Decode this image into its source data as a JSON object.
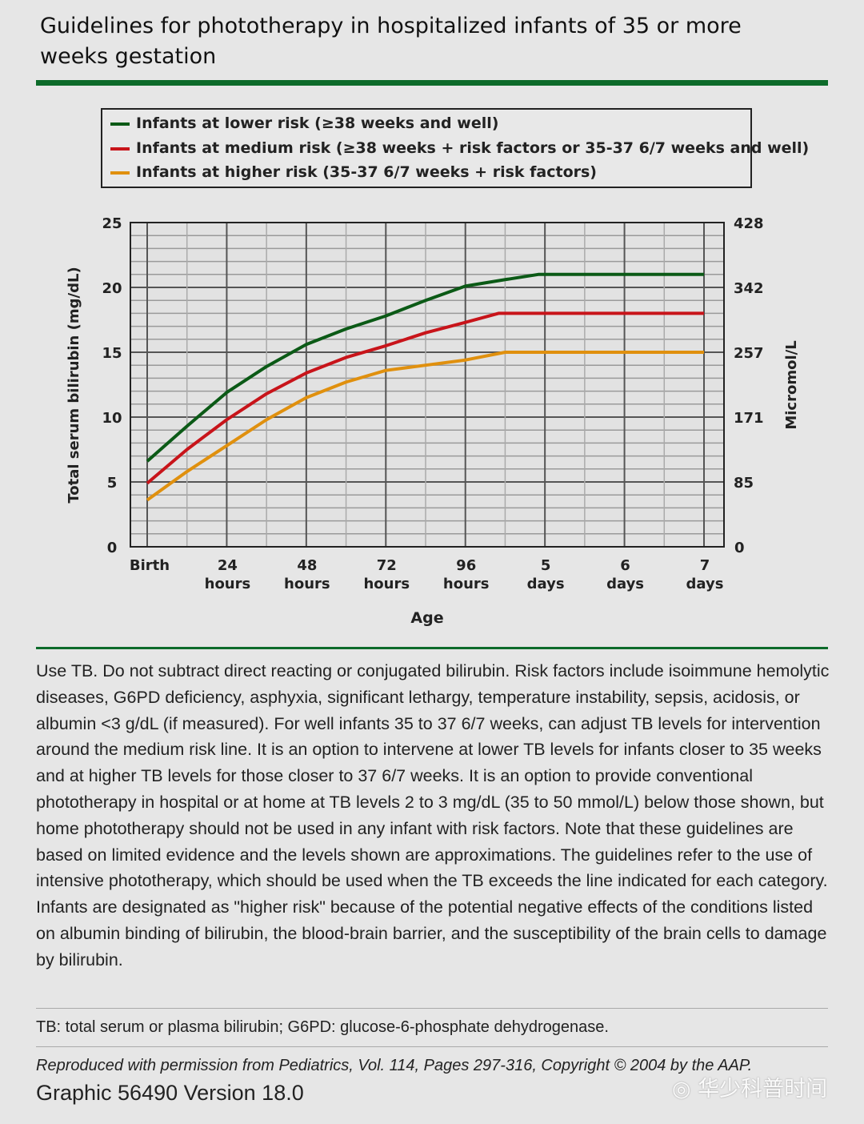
{
  "title": "Guidelines for phototherapy in hospitalized infants of 35 or more weeks gestation",
  "chart_data": {
    "type": "line",
    "xlabel": "Age",
    "ylabel": "Total serum bilirubin (mg/dL)",
    "y2label": "Micromol/L",
    "xlim": [
      0,
      168
    ],
    "ylim": [
      0,
      25
    ],
    "grid": true,
    "legend_position": "top",
    "x_ticks": [
      {
        "value": 0,
        "label": [
          "Birth"
        ]
      },
      {
        "value": 24,
        "label": [
          "24",
          "hours"
        ]
      },
      {
        "value": 48,
        "label": [
          "48",
          "hours"
        ]
      },
      {
        "value": 72,
        "label": [
          "72",
          "hours"
        ]
      },
      {
        "value": 96,
        "label": [
          "96",
          "hours"
        ]
      },
      {
        "value": 120,
        "label": [
          "5",
          "days"
        ]
      },
      {
        "value": 144,
        "label": [
          "6",
          "days"
        ]
      },
      {
        "value": 168,
        "label": [
          "7",
          "days"
        ]
      }
    ],
    "y_ticks": [
      0,
      5,
      10,
      15,
      20,
      25
    ],
    "y2_ticks": [
      {
        "value": 0,
        "label": "0"
      },
      {
        "value": 5,
        "label": "85"
      },
      {
        "value": 10,
        "label": "171"
      },
      {
        "value": 15,
        "label": "257"
      },
      {
        "value": 20,
        "label": "342"
      },
      {
        "value": 25,
        "label": "428"
      }
    ],
    "series": [
      {
        "name": "Infants at lower risk (≥38 weeks and well)",
        "color": "#0b5a16",
        "x": [
          0,
          12,
          24,
          36,
          48,
          60,
          72,
          84,
          96,
          108,
          118,
          168
        ],
        "y": [
          6.6,
          9.3,
          11.9,
          13.9,
          15.6,
          16.8,
          17.8,
          19.0,
          20.1,
          20.6,
          21.0,
          21.0
        ]
      },
      {
        "name": "Infants at medium risk (≥38 weeks + risk factors or 35-37 6/7 weeks and well)",
        "color": "#c8141a",
        "x": [
          0,
          12,
          24,
          36,
          48,
          60,
          72,
          84,
          96,
          106,
          168
        ],
        "y": [
          4.9,
          7.5,
          9.8,
          11.8,
          13.4,
          14.6,
          15.5,
          16.5,
          17.3,
          18.0,
          18.0
        ]
      },
      {
        "name": "Infants at higher risk (35-37 6/7 weeks + risk factors)",
        "color": "#e0900e",
        "x": [
          0,
          12,
          24,
          36,
          48,
          60,
          72,
          84,
          96,
          108,
          168
        ],
        "y": [
          3.6,
          5.8,
          7.8,
          9.8,
          11.5,
          12.7,
          13.6,
          14.0,
          14.4,
          15.0,
          15.0
        ]
      }
    ]
  },
  "body_text": "Use TB. Do not subtract direct reacting or conjugated bilirubin. Risk factors include isoimmune hemolytic diseases, G6PD deficiency, asphyxia, significant lethargy, temperature instability, sepsis, acidosis, or albumin <3 g/dL (if measured). For well infants 35 to 37 6/7 weeks, can adjust TB levels for intervention around the medium risk line. It is an option to intervene at lower TB levels for infants closer to 35 weeks and at higher TB levels for those closer to 37 6/7 weeks. It is an option to provide conventional phototherapy in hospital or at home at TB levels 2 to 3 mg/dL (35 to 50 mmol/L) below those shown, but home phototherapy should not be used in any infant with risk factors. Note that these guidelines are based on limited evidence and the levels shown are approximations. The guidelines refer to the use of intensive phototherapy, which should be used when the TB exceeds the line indicated for each category. Infants are designated as \"higher risk\" because of the potential negative effects of the conditions listed on albumin binding of bilirubin, the blood-brain barrier, and the susceptibility of the brain cells to damage by bilirubin.",
  "footnote": "TB: total serum or plasma bilirubin; G6PD: glucose-6-phosphate dehydrogenase.",
  "source": "Reproduced with permission from Pediatrics, Vol. 114, Pages 297-316, Copyright © 2004 by the AAP.",
  "graphic_id": "Graphic 56490 Version 18.0",
  "watermark": "华少科普时间"
}
